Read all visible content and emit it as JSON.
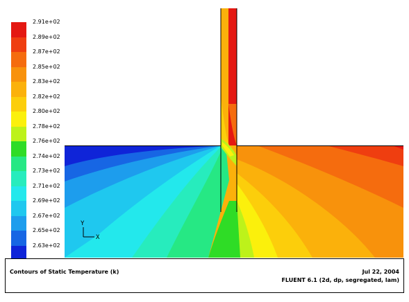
{
  "legend": {
    "levels": [
      {
        "label": "2.91e+02",
        "color": "#e41812"
      },
      {
        "label": "2.89e+02",
        "color": "#ef3e10"
      },
      {
        "label": "2.87e+02",
        "color": "#f56c0e"
      },
      {
        "label": "2.85e+02",
        "color": "#f8920c"
      },
      {
        "label": "2.83e+02",
        "color": "#fbb10b"
      },
      {
        "label": "2.82e+02",
        "color": "#fcce0b"
      },
      {
        "label": "2.80e+02",
        "color": "#fbf00c"
      },
      {
        "label": "2.78e+02",
        "color": "#bdf21a"
      },
      {
        "label": "2.76e+02",
        "color": "#2fdc26"
      },
      {
        "label": "2.74e+02",
        "color": "#26e884"
      },
      {
        "label": "2.73e+02",
        "color": "#27ecbd"
      },
      {
        "label": "2.71e+02",
        "color": "#23e8ec"
      },
      {
        "label": "2.69e+02",
        "color": "#1fc8ef"
      },
      {
        "label": "2.67e+02",
        "color": "#1d9ded"
      },
      {
        "label": "2.65e+02",
        "color": "#1766e4"
      },
      {
        "label": "2.63e+02",
        "color": "#0f24d8"
      }
    ]
  },
  "axes": {
    "y_label": "Y",
    "x_label": "X"
  },
  "footer": {
    "caption": "Contours of Static Temperature (k)",
    "date": "Jul 22, 2004",
    "software": "FLUENT 6.1 (2d, dp, segregated, lam)"
  }
}
